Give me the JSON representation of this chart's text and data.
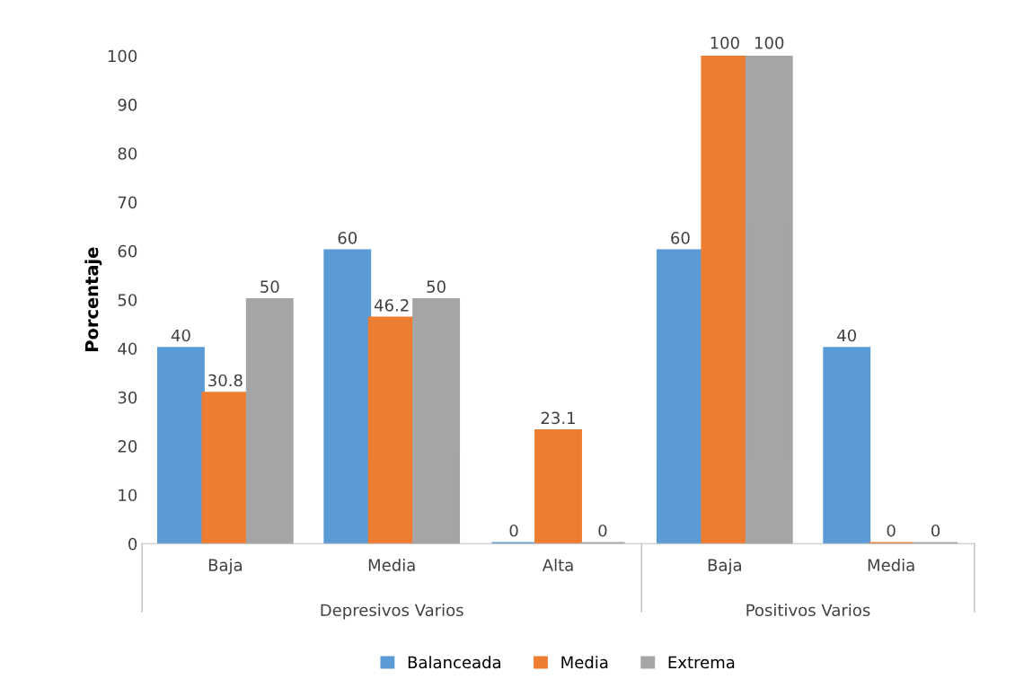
{
  "chart_data": {
    "type": "bar",
    "ylabel": "Porcentaje",
    "categories": [
      "Baja",
      "Media",
      "Alta",
      "Baja",
      "Media"
    ],
    "series": [
      {
        "name": "Balanceada",
        "color": "#5b9bd5",
        "values": [
          40,
          60,
          0,
          60,
          40
        ]
      },
      {
        "name": "Media",
        "color": "#ed7d31",
        "values": [
          30.8,
          46.2,
          23.1,
          100,
          0
        ]
      },
      {
        "name": "Extrema",
        "color": "#a5a5a5",
        "values": [
          50,
          50,
          0,
          100,
          0
        ]
      }
    ],
    "annotations": [
      "Depresivos Varios",
      "Positivos Varios"
    ],
    "ylim": [
      0,
      100
    ],
    "yticks": [
      0,
      10,
      20,
      30,
      40,
      50,
      60,
      70,
      80,
      90,
      100
    ],
    "data_labels": true,
    "legend": "bottom",
    "grid": false
  }
}
